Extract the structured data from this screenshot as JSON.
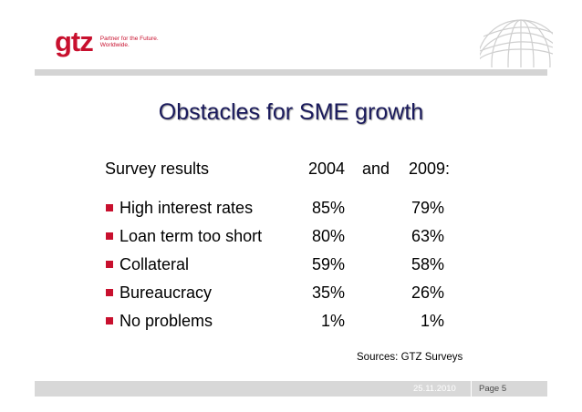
{
  "header": {
    "logo_word": "gtz",
    "logo_tagline_1": "Partner for the Future.",
    "logo_tagline_2": "Worldwide.",
    "globe_icon": "globe-icon"
  },
  "slide": {
    "title": "Obstacles for SME growth",
    "survey_label": "Survey results",
    "year_1": "2004",
    "conjunction": "and",
    "year_2": "2009:",
    "rows": [
      {
        "label": "High interest rates",
        "v2004": "85%",
        "v2009": "79%"
      },
      {
        "label": "Loan term too short",
        "v2004": "80%",
        "v2009": "63%"
      },
      {
        "label": "Collateral",
        "v2004": "59%",
        "v2009": "58%"
      },
      {
        "label": "Bureaucracy",
        "v2004": "35%",
        "v2009": "26%"
      },
      {
        "label": "No problems",
        "v2004": "1%",
        "v2009": "1%"
      }
    ],
    "sources": "Sources:  GTZ Surveys"
  },
  "footer": {
    "date": "25.11.2010",
    "page": "Page 5"
  },
  "colors": {
    "brand_red": "#c8102e",
    "title_navy": "#1a1a5c",
    "bar_gray": "#d4d4d4"
  }
}
